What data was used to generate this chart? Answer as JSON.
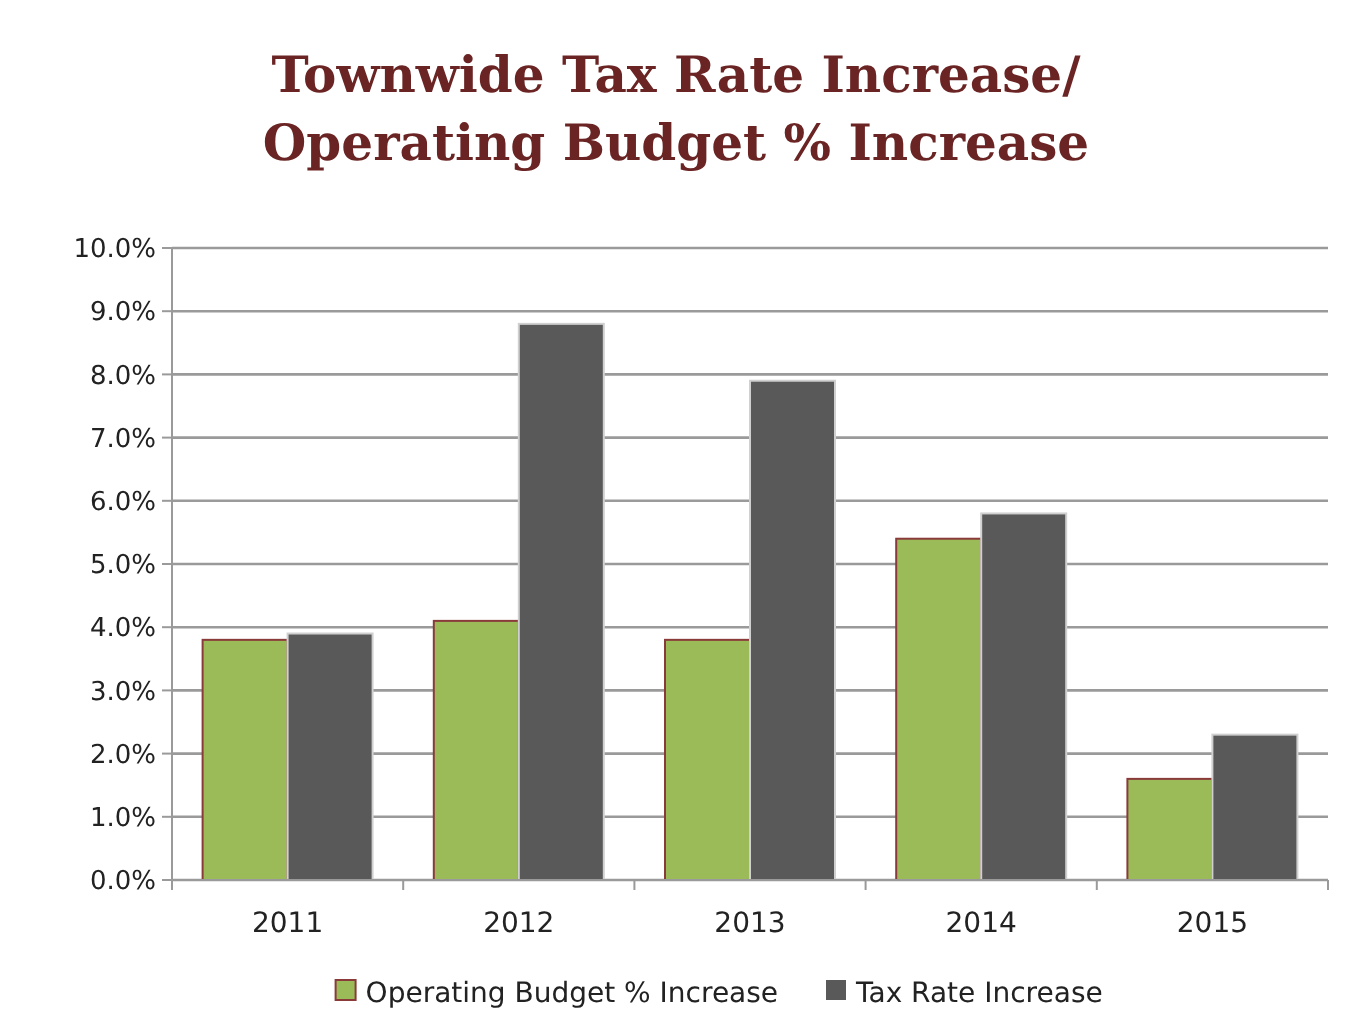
{
  "chart_data": {
    "type": "bar",
    "title": "Townwide Tax Rate Increase/\nOperating Budget % Increase",
    "categories": [
      "2011",
      "2012",
      "2013",
      "2014",
      "2015"
    ],
    "series": [
      {
        "name": "Operating Budget % Increase",
        "color": "#9bbb59",
        "values": [
          3.8,
          4.1,
          3.8,
          5.4,
          1.6
        ]
      },
      {
        "name": "Tax Rate Increase",
        "color": "#595959",
        "values": [
          3.9,
          8.8,
          7.9,
          5.8,
          2.3
        ]
      }
    ],
    "ylim": [
      0,
      10
    ],
    "yticks": [
      {
        "value": 0,
        "label": "0.0%"
      },
      {
        "value": 1,
        "label": "1.0%"
      },
      {
        "value": 2,
        "label": "2.0%"
      },
      {
        "value": 3,
        "label": "3.0%"
      },
      {
        "value": 4,
        "label": "4.0%"
      },
      {
        "value": 5,
        "label": "5.0%"
      },
      {
        "value": 6,
        "label": "6.0%"
      },
      {
        "value": 7,
        "label": "7.0%"
      },
      {
        "value": 8,
        "label": "8.0%"
      },
      {
        "value": 9,
        "label": "9.0%"
      },
      {
        "value": 10,
        "label": "10.0%"
      }
    ],
    "grid": "y",
    "legend": "bottom"
  }
}
